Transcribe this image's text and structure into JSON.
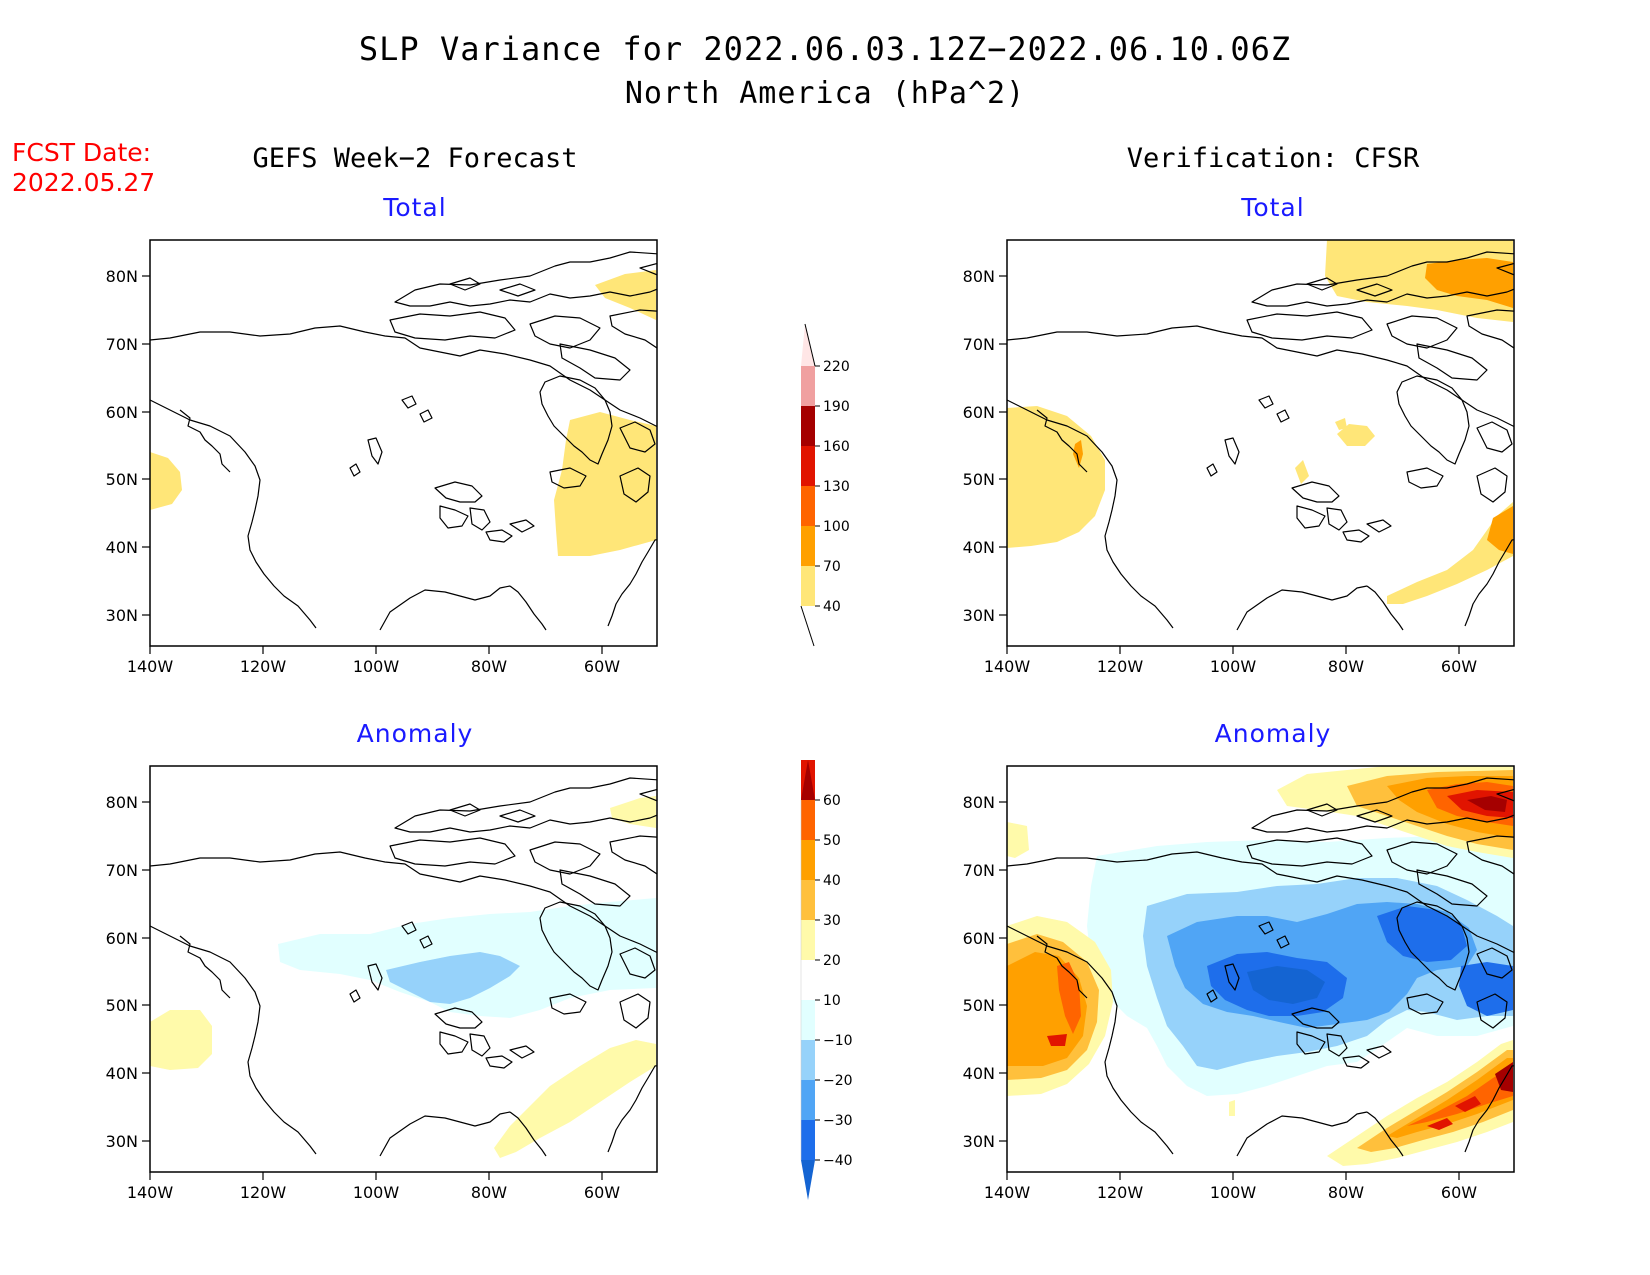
{
  "title": "SLP Variance for 2022.06.03.12Z−2022.06.10.06Z",
  "subtitle": "North America (hPa^2)",
  "fcst_date_label": "FCST Date:",
  "fcst_date_value": "2022.05.27",
  "columns": {
    "left": "GEFS Week−2 Forecast",
    "right": "Verification: CFSR"
  },
  "panel_labels": {
    "total": "Total",
    "anomaly": "Anomaly"
  },
  "axes": {
    "lon_ticks": [
      "140W",
      "120W",
      "100W",
      "80W",
      "60W"
    ],
    "lat_ticks": [
      "80N",
      "70N",
      "60N",
      "50N",
      "40N",
      "30N"
    ]
  },
  "colorbars": {
    "total": {
      "levels": [
        "40",
        "70",
        "100",
        "130",
        "160",
        "190",
        "220"
      ],
      "colors": [
        "#ffe678",
        "#ffa000",
        "#ff6400",
        "#e11400",
        "#a50000",
        "#f0a0a0",
        "#ffe6e6"
      ]
    },
    "anomaly": {
      "levels": [
        "−40",
        "−30",
        "−20",
        "−10",
        "10",
        "20",
        "30",
        "40",
        "50",
        "60"
      ],
      "colors": [
        "#1464d2",
        "#1e6eeb",
        "#50a5f5",
        "#96d2fa",
        "#e1ffff",
        "#ffffff",
        "#fffaaa",
        "#ffc03c",
        "#ffa000",
        "#ff6400",
        "#e11400",
        "#a50000"
      ]
    }
  }
}
